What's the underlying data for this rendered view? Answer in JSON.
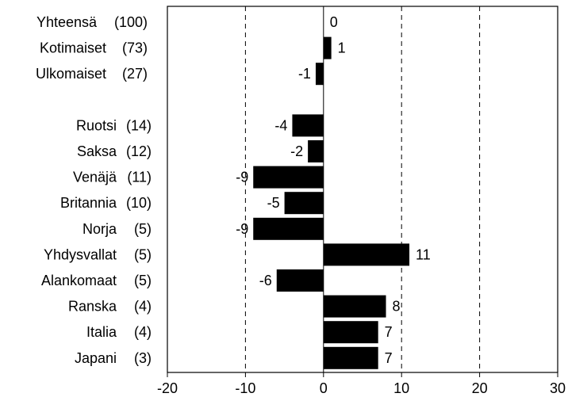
{
  "chart_data": {
    "type": "bar",
    "orientation": "horizontal",
    "categories": [
      {
        "name": "Yhteensä",
        "weight": "(100)"
      },
      {
        "name": "Kotimaiset",
        "weight": "(73)"
      },
      {
        "name": "Ulkomaiset",
        "weight": "(27)"
      },
      {
        "name": "Ruotsi",
        "weight": "(14)"
      },
      {
        "name": "Saksa",
        "weight": "(12)"
      },
      {
        "name": "Venäjä",
        "weight": "(11)"
      },
      {
        "name": "Britannia",
        "weight": "(10)"
      },
      {
        "name": "Norja",
        "weight": "(5)"
      },
      {
        "name": "Yhdysvallat",
        "weight": "(5)"
      },
      {
        "name": "Alankomaat",
        "weight": "(5)"
      },
      {
        "name": "Ranska",
        "weight": "(4)"
      },
      {
        "name": "Italia",
        "weight": "(4)"
      },
      {
        "name": "Japani",
        "weight": "(3)"
      }
    ],
    "values": [
      0,
      1,
      -1,
      -4,
      -2,
      -9,
      -5,
      -9,
      11,
      -6,
      8,
      7,
      7
    ],
    "data_labels": [
      "0",
      "1",
      "-1",
      "-4",
      "-2",
      "-9",
      "-5",
      "-9",
      "11",
      "-6",
      "8",
      "7",
      "7"
    ],
    "xlim": [
      -20,
      30
    ],
    "x_ticks": [
      -20,
      -10,
      0,
      10,
      20,
      30
    ],
    "x_tick_labels": [
      "-20",
      "-10",
      "0",
      "10",
      "20",
      "30"
    ],
    "gridlines": "vertical dashed at -10, 10, 20",
    "bar_color": "#000000",
    "title": "",
    "xlabel": "",
    "ylabel": ""
  }
}
